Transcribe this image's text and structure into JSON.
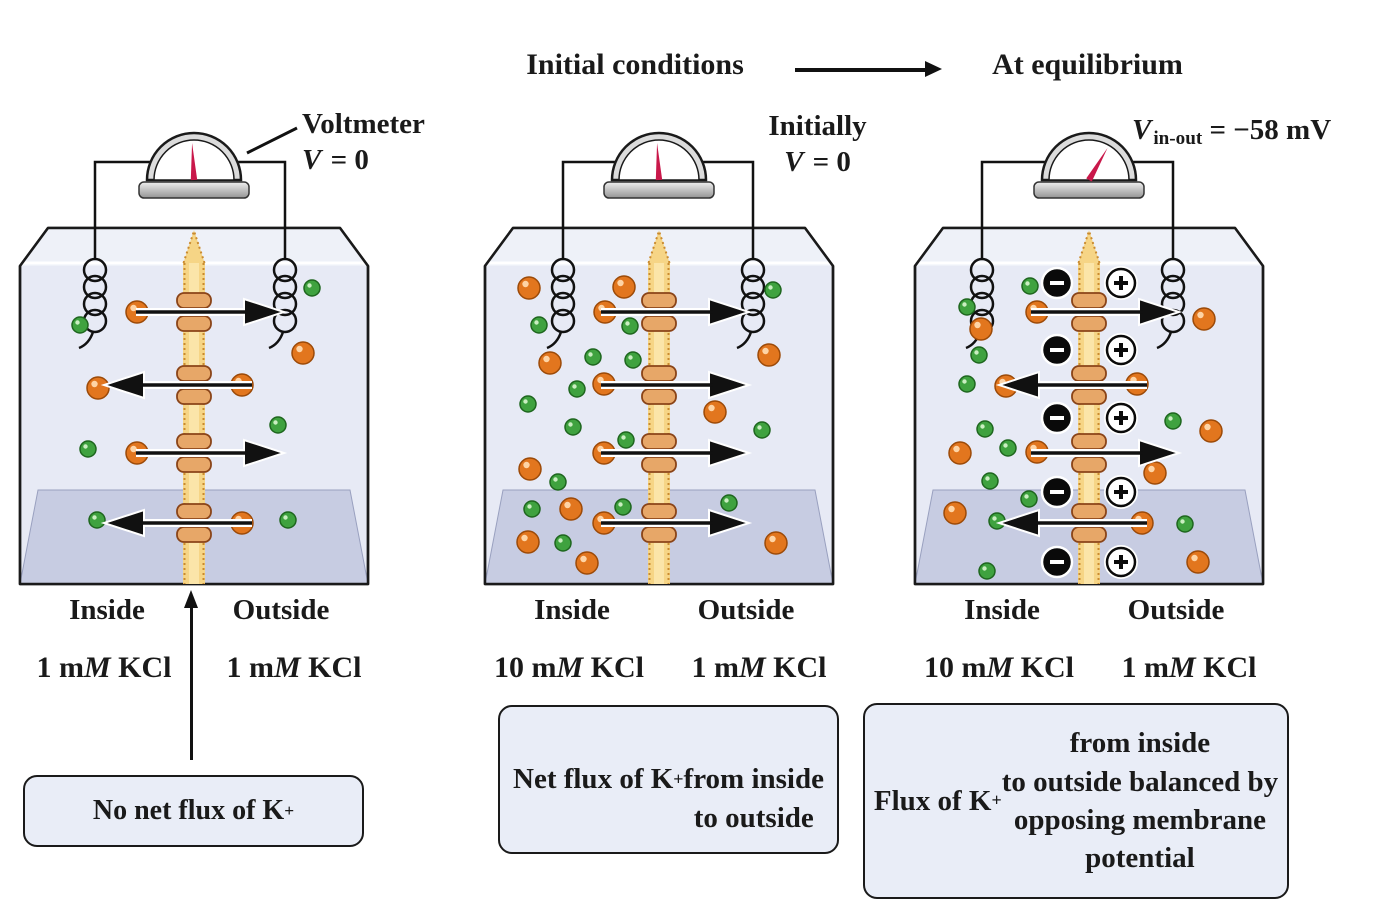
{
  "header": {
    "initial": "Initial conditions",
    "equilibrium": "At equilibrium"
  },
  "colors": {
    "k_ion": "#e2761e",
    "k_ion_edge": "#9c4a08",
    "cl_ion": "#3fa23f",
    "cl_ion_edge": "#1e661e",
    "membrane": "#f6d586",
    "membrane_edge": "#c98a2f",
    "channel": "#e7a768",
    "channel_edge": "#8a4418",
    "tank_fill": "#e7eaf5",
    "tank_upper": "#eef1f8",
    "tank_floor": "#c7cce2",
    "outline": "#1a1a1a",
    "needle": "#c9184a",
    "caption_bg": "#e9edf7"
  },
  "panels": [
    {
      "name": "no-net-flux",
      "meter": {
        "title": "Voltmeter",
        "v": "V",
        "sub": "",
        "value": " = 0",
        "needle_deg": -3,
        "pointer_line": true
      },
      "labels": {
        "inside": "Inside",
        "outside": "Outside"
      },
      "conc": {
        "inside": [
          "1 m",
          "M",
          " KCl"
        ],
        "outside": [
          "1 m",
          "M",
          " KCl"
        ]
      },
      "caption": {
        "pre": "No net flux of K",
        "sup": "+",
        "post": ""
      },
      "arrows": [
        "right",
        "left",
        "right",
        "left"
      ],
      "charges": false,
      "ions": {
        "k": [
          [
            117,
            212
          ],
          [
            222,
            285
          ],
          [
            117,
            353
          ],
          [
            222,
            423
          ],
          [
            78,
            288
          ],
          [
            283,
            253
          ]
        ],
        "cl": [
          [
            60,
            225
          ],
          [
            68,
            349
          ],
          [
            77,
            420
          ],
          [
            292,
            188
          ],
          [
            258,
            325
          ],
          [
            268,
            420
          ]
        ]
      }
    },
    {
      "name": "net-flux-initial",
      "meter": {
        "title": "Initially",
        "v": "V",
        "sub": "",
        "value": " = 0",
        "needle_deg": -3,
        "pointer_line": false
      },
      "labels": {
        "inside": "Inside",
        "outside": "Outside"
      },
      "conc": {
        "inside": [
          "10 m",
          "M",
          " KCl"
        ],
        "outside": [
          "1 m",
          "M",
          " KCl"
        ]
      },
      "caption": {
        "pre": "Net flux of K",
        "sup": "+",
        "post": "\nfrom inside\nto outside"
      },
      "arrows": [
        "right",
        "right",
        "right",
        "right"
      ],
      "charges": false,
      "ions": {
        "k": [
          [
            120,
            212
          ],
          [
            119,
            284
          ],
          [
            119,
            353
          ],
          [
            119,
            423
          ],
          [
            44,
            188
          ],
          [
            139,
            187
          ],
          [
            65,
            263
          ],
          [
            45,
            369
          ],
          [
            86,
            409
          ],
          [
            43,
            442
          ],
          [
            102,
            463
          ],
          [
            284,
            255
          ],
          [
            230,
            312
          ],
          [
            291,
            443
          ]
        ],
        "cl": [
          [
            54,
            225
          ],
          [
            145,
            226
          ],
          [
            108,
            257
          ],
          [
            148,
            260
          ],
          [
            92,
            289
          ],
          [
            43,
            304
          ],
          [
            88,
            327
          ],
          [
            141,
            340
          ],
          [
            73,
            382
          ],
          [
            47,
            409
          ],
          [
            138,
            407
          ],
          [
            78,
            443
          ],
          [
            288,
            190
          ],
          [
            277,
            330
          ],
          [
            244,
            403
          ]
        ]
      }
    },
    {
      "name": "equilibrium",
      "meter": {
        "title": "",
        "v": "V",
        "sub": "in-out",
        "value": " = −58 mV",
        "needle_deg": 30,
        "pointer_line": false
      },
      "labels": {
        "inside": "Inside",
        "outside": "Outside"
      },
      "conc": {
        "inside": [
          "10 m",
          "M",
          " KCl"
        ],
        "outside": [
          "1 m",
          "M",
          " KCl"
        ]
      },
      "caption": {
        "pre": "Flux of K",
        "sup": "+",
        "post": " from inside\nto outside balanced by\nopposing membrane\npotential"
      },
      "arrows": [
        "right",
        "left",
        "right",
        "left"
      ],
      "charges": true,
      "ions": {
        "k": [
          [
            122,
            212
          ],
          [
            222,
            284
          ],
          [
            122,
            352
          ],
          [
            227,
            423
          ],
          [
            66,
            229
          ],
          [
            91,
            286
          ],
          [
            45,
            353
          ],
          [
            40,
            413
          ],
          [
            289,
            219
          ],
          [
            296,
            331
          ],
          [
            240,
            373
          ],
          [
            283,
            462
          ]
        ],
        "cl": [
          [
            115,
            186
          ],
          [
            52,
            207
          ],
          [
            64,
            255
          ],
          [
            52,
            284
          ],
          [
            70,
            329
          ],
          [
            93,
            348
          ],
          [
            75,
            381
          ],
          [
            114,
            399
          ],
          [
            82,
            421
          ],
          [
            72,
            471
          ],
          [
            258,
            321
          ],
          [
            270,
            424
          ]
        ]
      }
    }
  ]
}
